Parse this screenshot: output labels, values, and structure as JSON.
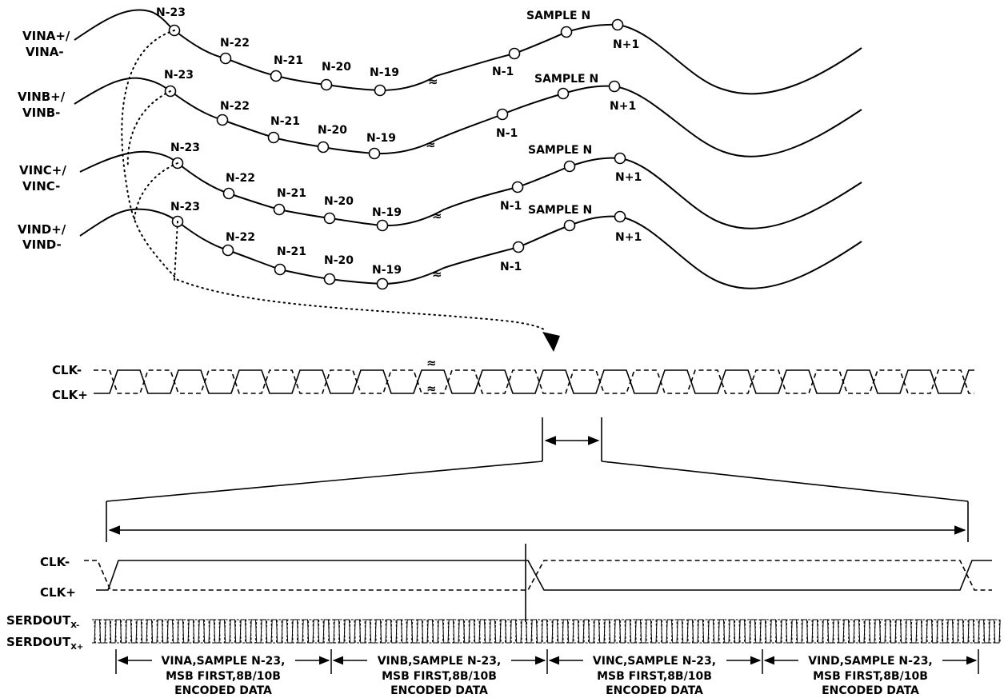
{
  "channels": [
    {
      "label_line1": "VINA+/",
      "label_line2": "VINA-",
      "samples": [
        "N-23",
        "N-22",
        "N-21",
        "N-20",
        "N-19",
        "N-1",
        "SAMPLE N",
        "N+1"
      ]
    },
    {
      "label_line1": "VINB+/",
      "label_line2": "VINB-",
      "samples": [
        "N-23",
        "N-22",
        "N-21",
        "N-20",
        "N-19",
        "N-1",
        "SAMPLE N",
        "N+1"
      ]
    },
    {
      "label_line1": "VINC+/",
      "label_line2": "VINC-",
      "samples": [
        "N-23",
        "N-22",
        "N-21",
        "N-20",
        "N-19",
        "N-1",
        "SAMPLE N",
        "N+1"
      ]
    },
    {
      "label_line1": "VIND+/",
      "label_line2": "VIND-",
      "samples": [
        "N-23",
        "N-22",
        "N-21",
        "N-20",
        "N-19",
        "N-1",
        "SAMPLE N",
        "N+1"
      ]
    }
  ],
  "break_symbol": "≈",
  "clock": {
    "neg_label": "CLK-",
    "pos_label": "CLK+"
  },
  "detail_clock": {
    "neg_label": "CLK-",
    "pos_label": "CLK+"
  },
  "serdout": {
    "neg_base": "SERDOUT",
    "neg_sub": "X-",
    "pos_base": "SERDOUT",
    "pos_sub": "X+"
  },
  "data_blocks": [
    {
      "line1": "VINA,SAMPLE N-23,",
      "line2": "MSB FIRST,8B/10B",
      "line3": "ENCODED DATA"
    },
    {
      "line1": "VINB,SAMPLE N-23,",
      "line2": "MSB FIRST,8B/10B",
      "line3": "ENCODED DATA"
    },
    {
      "line1": "VINC,SAMPLE N-23,",
      "line2": "MSB FIRST,8B/10B",
      "line3": "ENCODED DATA"
    },
    {
      "line1": "VIND,SAMPLE N-23,",
      "line2": "MSB FIRST,8B/10B",
      "line3": "ENCODED DATA"
    }
  ]
}
